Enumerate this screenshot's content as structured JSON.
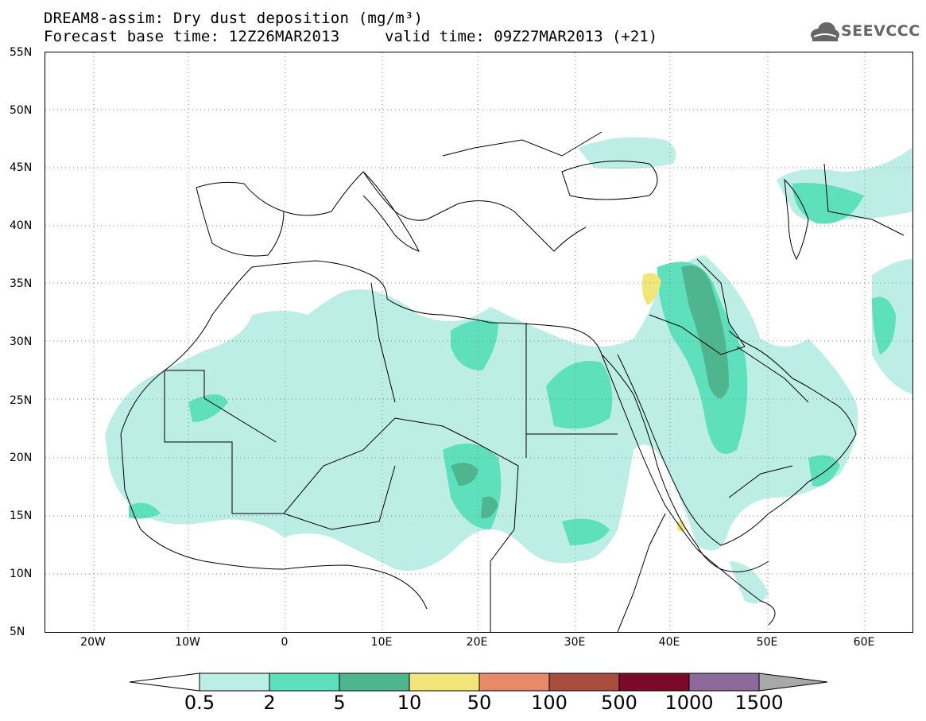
{
  "title": "DREAM8-assim: Dry dust deposition (mg/m³)",
  "forecast_base": "Forecast base time: 12Z26MAR2013",
  "valid_time": "valid time: 09Z27MAR2013 (+21)",
  "logo_text": "SEEVCCC",
  "lat_labels": [
    "55N",
    "50N",
    "45N",
    "40N",
    "35N",
    "30N",
    "25N",
    "20N",
    "15N",
    "10N",
    "5N"
  ],
  "lon_labels": [
    "20W",
    "10W",
    "0",
    "10E",
    "20E",
    "30E",
    "40E",
    "50E",
    "60E"
  ],
  "colorbar": {
    "levels": [
      "0.5",
      "2",
      "5",
      "10",
      "50",
      "100",
      "500",
      "1000",
      "1500"
    ],
    "colors": [
      "#ffffff",
      "#bdeee6",
      "#5de0bb",
      "#4fb58f",
      "#f2e67a",
      "#e8896a",
      "#a84c3e",
      "#7b0a2a",
      "#8c6b9c",
      "#a8a8a8"
    ]
  }
}
